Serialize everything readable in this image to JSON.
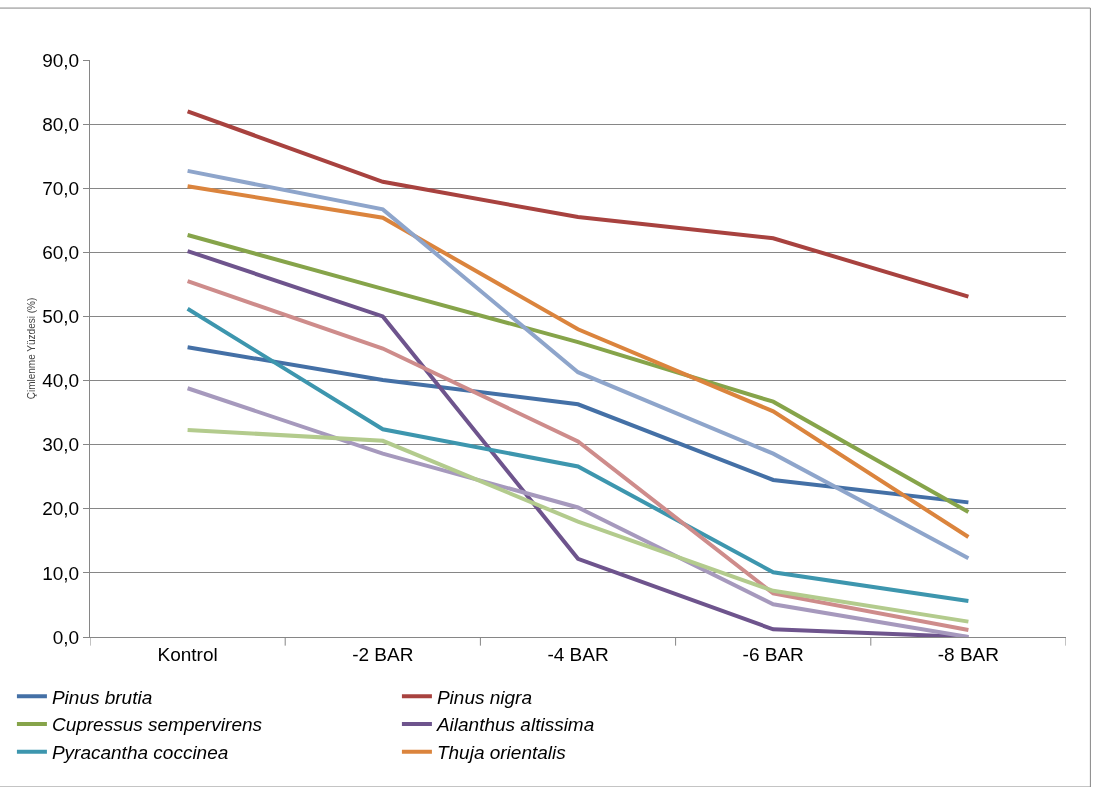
{
  "chart_data": {
    "type": "line",
    "ylabel": "Çimlenme Yüzdesi (%)",
    "categories": [
      "Kontrol",
      "-2 BAR",
      "-4 BAR",
      "-6 BAR",
      "-8 BAR"
    ],
    "series": [
      {
        "name": "Pinus brutia",
        "color": "#4470a6",
        "values": [
          45.2,
          40.1,
          36.3,
          24.5,
          21.0
        ]
      },
      {
        "name": "Pinus nigra",
        "color": "#a8423f",
        "values": [
          82.0,
          71.0,
          65.5,
          62.2,
          53.1
        ]
      },
      {
        "name": "Cupressus sempervirens",
        "color": "#86a44a",
        "values": [
          62.7,
          54.3,
          46.0,
          36.7,
          19.5
        ]
      },
      {
        "name": "Ailanthus altissima",
        "color": "#6e548d",
        "values": [
          60.2,
          50.0,
          12.2,
          1.2,
          0.0
        ]
      },
      {
        "name": "Pyracantha coccinea",
        "color": "#3d96ae",
        "values": [
          51.2,
          32.4,
          26.6,
          10.1,
          5.6
        ]
      },
      {
        "name": "Thuja orientalis",
        "color": "#db843d",
        "values": [
          70.3,
          65.4,
          48.0,
          35.2,
          15.6
        ]
      },
      {
        "color": "#8ea5cb",
        "values": [
          72.7,
          66.7,
          41.3,
          28.6,
          12.3
        ]
      },
      {
        "color": "#ce8c8b",
        "values": [
          55.5,
          45.0,
          30.5,
          6.8,
          1.1
        ]
      },
      {
        "color": "#a699bd",
        "values": [
          38.8,
          28.6,
          20.2,
          5.1,
          0.0
        ]
      },
      {
        "color": "#b3cb8d",
        "values": [
          32.3,
          30.6,
          18.0,
          7.2,
          2.4
        ]
      }
    ],
    "ylim": [
      0,
      90
    ],
    "yticks": [
      {
        "value": 0,
        "label": "0,0"
      },
      {
        "value": 10,
        "label": "10,0"
      },
      {
        "value": 20,
        "label": "20,0"
      },
      {
        "value": 30,
        "label": "30,0"
      },
      {
        "value": 40,
        "label": "40,0"
      },
      {
        "value": 50,
        "label": "50,0"
      },
      {
        "value": 60,
        "label": "60,0"
      },
      {
        "value": 70,
        "label": "70,0"
      },
      {
        "value": 80,
        "label": "80,0"
      },
      {
        "value": 90,
        "label": "90,0"
      }
    ],
    "grid": "y",
    "legend": "bottom",
    "marker": "none",
    "line_style": "solid"
  }
}
